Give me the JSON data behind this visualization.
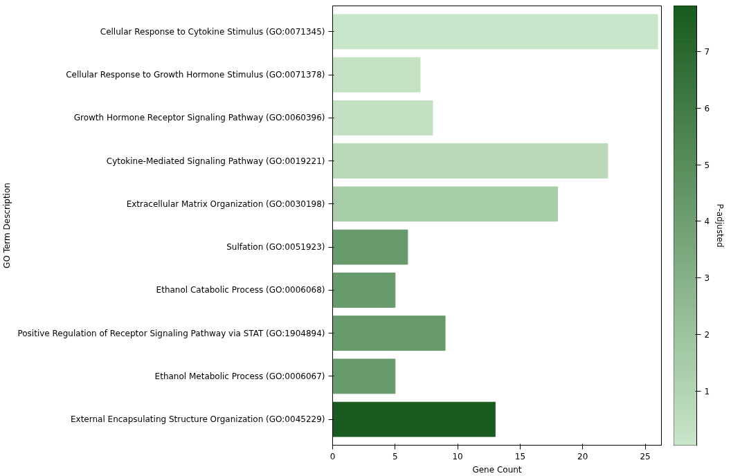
{
  "chart_data": {
    "type": "bar",
    "orientation": "horizontal",
    "xlabel": "Gene Count",
    "ylabel": "GO Term Description",
    "clabel": "P-adjusted",
    "categories": [
      "Cellular Response to Cytokine Stimulus (GO:0071345)",
      "Cellular Response to Growth Hormone Stimulus (GO:0071378)",
      "Growth Hormone Receptor Signaling Pathway (GO:0060396)",
      "Cytokine-Mediated Signaling Pathway (GO:0019221)",
      "Extracellular Matrix Organization (GO:0030198)",
      "Sulfation (GO:0051923)",
      "Ethanol Catabolic Process (GO:0006068)",
      "Positive Regulation of Receptor Signaling Pathway via STAT (GO:1904894)",
      "Ethanol Metabolic Process (GO:0006067)",
      "External Encapsulating Structure Organization (GO:0045229)"
    ],
    "values": [
      26,
      7,
      8,
      22,
      18,
      6,
      5,
      9,
      5,
      13
    ],
    "colors": [
      "#c8e6c9",
      "#c4e1c3",
      "#c3e1c2",
      "#b9d9b8",
      "#a6cda8",
      "#689b6c",
      "#689b6c",
      "#689b6c",
      "#689b6c",
      "#1a5c1f"
    ],
    "xlim": [
      0,
      26.3
    ],
    "xticks": [
      0,
      5,
      10,
      15,
      20,
      25
    ],
    "clim": [
      0.04,
      7.81
    ],
    "cticks": [
      1,
      2,
      3,
      4,
      5,
      6,
      7
    ],
    "grid": false
  }
}
